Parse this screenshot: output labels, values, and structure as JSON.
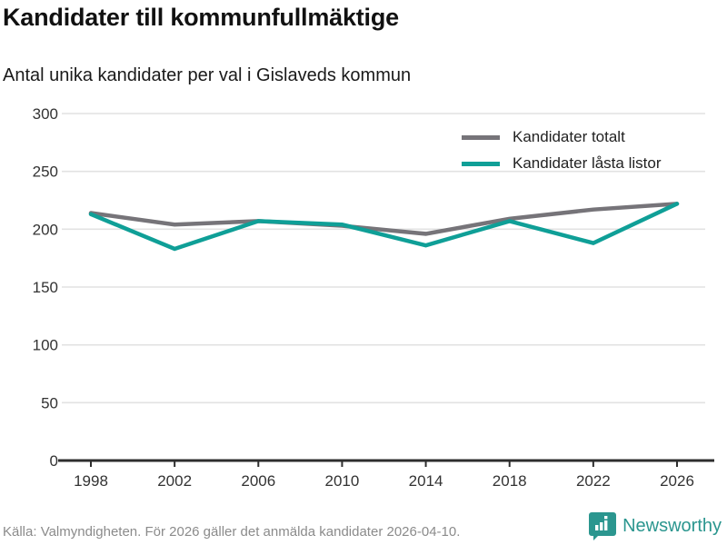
{
  "header": {
    "title": "Kandidater till kommunfullmäktige",
    "subtitle": "Antal unika kandidater per val i Gislaveds kommun"
  },
  "chart_data": {
    "type": "line",
    "title": "Kandidater till kommunfullmäktige",
    "subtitle": "Antal unika kandidater per val i Gislaveds kommun",
    "x": [
      1998,
      2002,
      2006,
      2010,
      2014,
      2018,
      2022,
      2026
    ],
    "series": [
      {
        "name": "Kandidater totalt",
        "color": "#767479",
        "values": [
          214,
          204,
          207,
          203,
          196,
          209,
          217,
          222
        ]
      },
      {
        "name": "Kandidater låsta listor",
        "color": "#0f9f97",
        "values": [
          213,
          183,
          207,
          204,
          186,
          207,
          188,
          222
        ]
      }
    ],
    "xlabel": "",
    "ylabel": "",
    "ylim": [
      0,
      300
    ],
    "yticks": [
      0,
      50,
      100,
      150,
      200,
      250,
      300
    ],
    "grid": true,
    "legend_position": "top-right",
    "colors": {
      "grid": "#e2e2e2",
      "axis": "#2e2e2e",
      "tick_label": "#333333"
    }
  },
  "footer": {
    "source": "Källa: Valmyndigheten. För 2026 gäller det anmälda kandidater 2026-04-10.",
    "brand": "Newsworthy",
    "brand_color": "#2b968f"
  }
}
